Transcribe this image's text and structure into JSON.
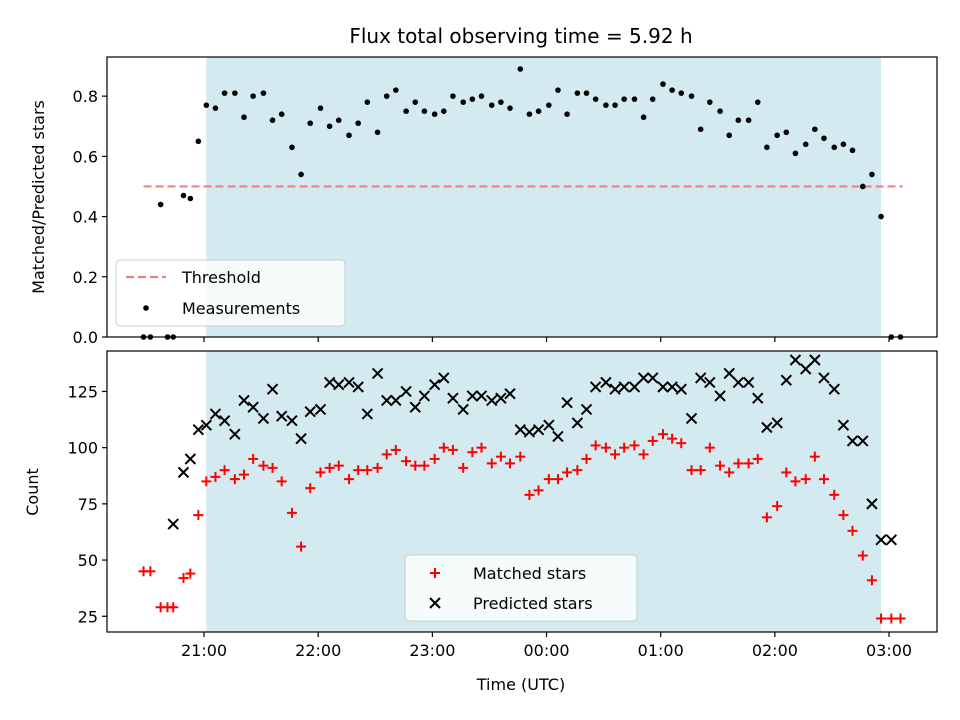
{
  "chart_data": {
    "title": "Flux total observing time = 5.92 h",
    "xlabel": "Time (UTC)",
    "x_tick_labels": [
      "21:00",
      "22:00",
      "23:00",
      "00:00",
      "01:00",
      "02:00",
      "03:00"
    ],
    "x_ticks_hours": [
      21,
      22,
      23,
      24,
      25,
      26,
      27
    ],
    "xlim_hours": [
      20.15,
      27.42
    ],
    "shaded_span_hours": [
      21.02,
      26.93
    ],
    "colors": {
      "shade": "#d3eaf0",
      "threshold": "#f08080",
      "measurements": "#000000",
      "matched": "#ff0000",
      "predicted": "#000000"
    },
    "panels": [
      {
        "type": "scatter",
        "ylabel": "Matched/Predicted stars",
        "ylim": [
          0,
          0.93
        ],
        "y_ticks": [
          0.0,
          0.2,
          0.4,
          0.6,
          0.8
        ],
        "y_tick_labels": [
          "0.0",
          "0.2",
          "0.4",
          "0.6",
          "0.8"
        ],
        "grid": false,
        "legend_position": "lower-left",
        "threshold": {
          "name": "Threshold",
          "value": 0.5,
          "x_range": [
            20.47,
            27.12
          ]
        },
        "series": [
          {
            "name": "Measurements",
            "marker": "dot",
            "x": [
              20.47,
              20.53,
              20.62,
              20.68,
              20.73,
              20.82,
              20.88,
              20.95,
              21.02,
              21.1,
              21.18,
              21.27,
              21.35,
              21.43,
              21.52,
              21.6,
              21.68,
              21.77,
              21.85,
              21.93,
              22.02,
              22.1,
              22.18,
              22.27,
              22.35,
              22.43,
              22.52,
              22.6,
              22.68,
              22.77,
              22.85,
              22.93,
              23.02,
              23.1,
              23.18,
              23.27,
              23.35,
              23.43,
              23.52,
              23.6,
              23.68,
              23.77,
              23.85,
              23.93,
              24.02,
              24.1,
              24.18,
              24.27,
              24.35,
              24.43,
              24.52,
              24.6,
              24.68,
              24.77,
              24.85,
              24.93,
              25.02,
              25.1,
              25.18,
              25.27,
              25.35,
              25.43,
              25.52,
              25.6,
              25.68,
              25.77,
              25.85,
              25.93,
              26.02,
              26.1,
              26.18,
              26.27,
              26.35,
              26.43,
              26.52,
              26.6,
              26.68,
              26.77,
              26.85,
              26.93,
              27.02,
              27.1
            ],
            "y": [
              0.0,
              0.0,
              0.44,
              0.0,
              0.0,
              0.47,
              0.46,
              0.65,
              0.77,
              0.76,
              0.81,
              0.81,
              0.73,
              0.8,
              0.81,
              0.72,
              0.74,
              0.63,
              0.54,
              0.71,
              0.76,
              0.7,
              0.72,
              0.67,
              0.71,
              0.78,
              0.68,
              0.8,
              0.82,
              0.75,
              0.78,
              0.75,
              0.74,
              0.75,
              0.8,
              0.78,
              0.79,
              0.8,
              0.77,
              0.78,
              0.76,
              0.89,
              0.74,
              0.75,
              0.77,
              0.82,
              0.74,
              0.81,
              0.81,
              0.79,
              0.77,
              0.77,
              0.79,
              0.79,
              0.73,
              0.79,
              0.84,
              0.82,
              0.81,
              0.8,
              0.69,
              0.78,
              0.75,
              0.67,
              0.72,
              0.72,
              0.78,
              0.63,
              0.67,
              0.68,
              0.61,
              0.64,
              0.69,
              0.66,
              0.63,
              0.64,
              0.62,
              0.5,
              0.54,
              0.4,
              0.0,
              0.0
            ]
          }
        ]
      },
      {
        "type": "scatter",
        "ylabel": "Count",
        "ylim": [
          18,
          143
        ],
        "y_ticks": [
          25,
          50,
          75,
          100,
          125
        ],
        "y_tick_labels": [
          "25",
          "50",
          "75",
          "100",
          "125"
        ],
        "grid": false,
        "legend_position": "lower-center",
        "series": [
          {
            "name": "Matched stars",
            "marker": "plus",
            "x": [
              20.47,
              20.53,
              20.62,
              20.68,
              20.73,
              20.82,
              20.88,
              20.95,
              21.02,
              21.1,
              21.18,
              21.27,
              21.35,
              21.43,
              21.52,
              21.6,
              21.68,
              21.77,
              21.85,
              21.93,
              22.02,
              22.1,
              22.18,
              22.27,
              22.35,
              22.43,
              22.52,
              22.6,
              22.68,
              22.77,
              22.85,
              22.93,
              23.02,
              23.1,
              23.18,
              23.27,
              23.35,
              23.43,
              23.52,
              23.6,
              23.68,
              23.77,
              23.85,
              23.93,
              24.02,
              24.1,
              24.18,
              24.27,
              24.35,
              24.43,
              24.52,
              24.6,
              24.68,
              24.77,
              24.85,
              24.93,
              25.02,
              25.1,
              25.18,
              25.27,
              25.35,
              25.43,
              25.52,
              25.6,
              25.68,
              25.77,
              25.85,
              25.93,
              26.02,
              26.1,
              26.18,
              26.27,
              26.35,
              26.43,
              26.52,
              26.6,
              26.68,
              26.77,
              26.85,
              26.93,
              27.02,
              27.1
            ],
            "y": [
              45,
              45,
              29,
              29,
              29,
              42,
              44,
              70,
              85,
              87,
              90,
              86,
              88,
              95,
              92,
              91,
              85,
              71,
              56,
              82,
              89,
              91,
              92,
              86,
              90,
              90,
              91,
              97,
              99,
              94,
              92,
              92,
              95,
              100,
              99,
              91,
              98,
              100,
              93,
              96,
              93,
              96,
              79,
              81,
              86,
              86,
              89,
              90,
              95,
              101,
              100,
              97,
              100,
              101,
              97,
              103,
              106,
              104,
              102,
              90,
              90,
              100,
              92,
              89,
              93,
              93,
              95,
              69,
              74,
              89,
              85,
              86,
              96,
              86,
              79,
              70,
              63,
              52,
              41,
              24,
              24,
              24
            ]
          },
          {
            "name": "Predicted stars",
            "marker": "x",
            "x": [
              20.73,
              20.82,
              20.88,
              20.95,
              21.02,
              21.1,
              21.18,
              21.27,
              21.35,
              21.43,
              21.52,
              21.6,
              21.68,
              21.77,
              21.85,
              21.93,
              22.02,
              22.1,
              22.18,
              22.27,
              22.35,
              22.43,
              22.52,
              22.6,
              22.68,
              22.77,
              22.85,
              22.93,
              23.02,
              23.1,
              23.18,
              23.27,
              23.35,
              23.43,
              23.52,
              23.6,
              23.68,
              23.77,
              23.85,
              23.93,
              24.02,
              24.1,
              24.18,
              24.27,
              24.35,
              24.43,
              24.52,
              24.6,
              24.68,
              24.77,
              24.85,
              24.93,
              25.02,
              25.1,
              25.18,
              25.27,
              25.35,
              25.43,
              25.52,
              25.6,
              25.68,
              25.77,
              25.85,
              25.93,
              26.02,
              26.1,
              26.18,
              26.27,
              26.35,
              26.43,
              26.52,
              26.6,
              26.68,
              26.77,
              26.85,
              26.93,
              27.02
            ],
            "y": [
              66,
              89,
              95,
              108,
              110,
              115,
              112,
              106,
              121,
              118,
              113,
              126,
              114,
              112,
              104,
              116,
              117,
              129,
              128,
              129,
              127,
              115,
              133,
              121,
              121,
              125,
              118,
              123,
              128,
              131,
              122,
              117,
              123,
              123,
              121,
              122,
              124,
              108,
              107,
              108,
              110,
              105,
              120,
              111,
              117,
              127,
              129,
              126,
              127,
              127,
              131,
              131,
              127,
              127,
              126,
              113,
              131,
              129,
              123,
              133,
              129,
              129,
              122,
              109,
              111,
              130,
              139,
              135,
              139,
              131,
              126,
              110,
              103,
              103,
              75,
              59,
              59
            ]
          }
        ]
      }
    ]
  }
}
